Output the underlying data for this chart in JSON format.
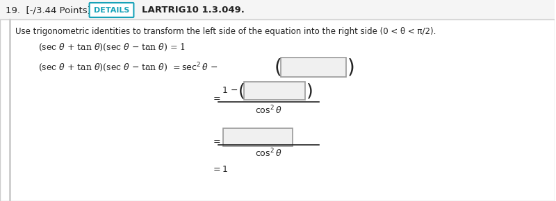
{
  "bg_color": "#ffffff",
  "border_color": "#cccccc",
  "header_bg": "#f5f5f5",
  "header_text": "19.  [-/3.44 Points]",
  "details_btn_text": "DETAILS",
  "details_btn_border": "#17a2b8",
  "details_btn_color": "#17a2b8",
  "problem_id": "LARTRIG10 1.3.049.",
  "instruction": "Use trigonometric identities to transform the left side of the equation into the right side (0 < θ < π/2).",
  "equation_given": "(sec θ + tan θ)(sec θ − tan θ) = 1",
  "font_color": "#222222",
  "box_border": "#999999",
  "box_fill": "#f0f0f0"
}
